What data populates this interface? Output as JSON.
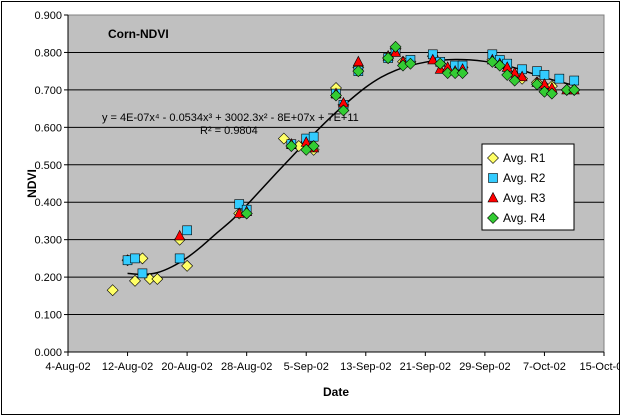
{
  "chart_data": {
    "type": "scatter",
    "title": "Corn-NDVI",
    "xlabel": "Date",
    "ylabel": "NDVI",
    "x_axis": {
      "type": "date",
      "range": [
        "2002-08-04",
        "2002-10-15"
      ]
    },
    "ylim": [
      0,
      0.9
    ],
    "y_ticks": [
      "0.000",
      "0.100",
      "0.200",
      "0.300",
      "0.400",
      "0.500",
      "0.600",
      "0.700",
      "0.800",
      "0.900"
    ],
    "x_ticks": [
      {
        "date": "2002-08-04",
        "label": "4-Aug-02"
      },
      {
        "date": "2002-08-12",
        "label": "12-Aug-02"
      },
      {
        "date": "2002-08-20",
        "label": "20-Aug-02"
      },
      {
        "date": "2002-08-28",
        "label": "28-Aug-02"
      },
      {
        "date": "2002-09-05",
        "label": "5-Sep-02"
      },
      {
        "date": "2002-09-13",
        "label": "13-Sep-02"
      },
      {
        "date": "2002-09-21",
        "label": "21-Sep-02"
      },
      {
        "date": "2002-09-29",
        "label": "29-Sep-02"
      },
      {
        "date": "2002-10-07",
        "label": "7-Oct-02"
      },
      {
        "date": "2002-10-15",
        "label": "15-Oct-02"
      }
    ],
    "grid": true,
    "legend_position": "right",
    "plot_background": "#c0c0c0",
    "trendline": {
      "equation": "y = 4E-07x⁴ - 0.0534x³ + 3002.3x² - 8E+07x + 7E+11",
      "r_squared": "R² = 0.9804",
      "color": "#000000",
      "points": [
        {
          "x": "2002-08-12",
          "y": 0.21
        },
        {
          "x": "2002-08-14",
          "y": 0.207
        },
        {
          "x": "2002-08-16",
          "y": 0.212
        },
        {
          "x": "2002-08-18",
          "y": 0.228
        },
        {
          "x": "2002-08-20",
          "y": 0.252
        },
        {
          "x": "2002-08-22",
          "y": 0.283
        },
        {
          "x": "2002-08-24",
          "y": 0.318
        },
        {
          "x": "2002-08-26",
          "y": 0.352
        },
        {
          "x": "2002-08-28",
          "y": 0.392
        },
        {
          "x": "2002-08-30",
          "y": 0.435
        },
        {
          "x": "2002-09-01",
          "y": 0.478
        },
        {
          "x": "2002-09-03",
          "y": 0.52
        },
        {
          "x": "2002-09-05",
          "y": 0.562
        },
        {
          "x": "2002-09-07",
          "y": 0.602
        },
        {
          "x": "2002-09-09",
          "y": 0.64
        },
        {
          "x": "2002-09-11",
          "y": 0.675
        },
        {
          "x": "2002-09-13",
          "y": 0.707
        },
        {
          "x": "2002-09-15",
          "y": 0.733
        },
        {
          "x": "2002-09-17",
          "y": 0.752
        },
        {
          "x": "2002-09-19",
          "y": 0.765
        },
        {
          "x": "2002-09-21",
          "y": 0.774
        },
        {
          "x": "2002-09-23",
          "y": 0.779
        },
        {
          "x": "2002-09-25",
          "y": 0.781
        },
        {
          "x": "2002-09-27",
          "y": 0.78
        },
        {
          "x": "2002-09-29",
          "y": 0.776
        },
        {
          "x": "2002-10-01",
          "y": 0.769
        },
        {
          "x": "2002-10-03",
          "y": 0.759
        },
        {
          "x": "2002-10-05",
          "y": 0.746
        },
        {
          "x": "2002-10-07",
          "y": 0.733
        },
        {
          "x": "2002-10-09",
          "y": 0.722
        },
        {
          "x": "2002-10-11",
          "y": 0.712
        }
      ]
    },
    "series": [
      {
        "name": "Avg. R1",
        "marker": "diamond",
        "color": "#ffff66",
        "points": [
          {
            "x": "2002-08-10",
            "y": 0.165
          },
          {
            "x": "2002-08-12",
            "y": 0.245
          },
          {
            "x": "2002-08-13",
            "y": 0.19
          },
          {
            "x": "2002-08-14",
            "y": 0.25
          },
          {
            "x": "2002-08-15",
            "y": 0.195
          },
          {
            "x": "2002-08-16",
            "y": 0.195
          },
          {
            "x": "2002-08-19",
            "y": 0.3
          },
          {
            "x": "2002-08-20",
            "y": 0.23
          },
          {
            "x": "2002-08-27",
            "y": 0.37
          },
          {
            "x": "2002-08-28",
            "y": 0.37
          },
          {
            "x": "2002-09-02",
            "y": 0.57
          },
          {
            "x": "2002-09-04",
            "y": 0.55
          },
          {
            "x": "2002-09-05",
            "y": 0.56
          },
          {
            "x": "2002-09-06",
            "y": 0.54
          },
          {
            "x": "2002-09-09",
            "y": 0.705
          },
          {
            "x": "2002-09-10",
            "y": 0.66
          },
          {
            "x": "2002-09-12",
            "y": 0.76
          },
          {
            "x": "2002-09-16",
            "y": 0.785
          },
          {
            "x": "2002-09-17",
            "y": 0.81
          },
          {
            "x": "2002-09-18",
            "y": 0.775
          },
          {
            "x": "2002-09-19",
            "y": 0.775
          },
          {
            "x": "2002-09-22",
            "y": 0.79
          },
          {
            "x": "2002-09-23",
            "y": 0.77
          },
          {
            "x": "2002-09-25",
            "y": 0.76
          },
          {
            "x": "2002-09-26",
            "y": 0.76
          },
          {
            "x": "2002-09-30",
            "y": 0.78
          },
          {
            "x": "2002-10-01",
            "y": 0.77
          },
          {
            "x": "2002-10-02",
            "y": 0.76
          },
          {
            "x": "2002-10-03",
            "y": 0.74
          },
          {
            "x": "2002-10-04",
            "y": 0.73
          },
          {
            "x": "2002-10-06",
            "y": 0.72
          },
          {
            "x": "2002-10-07",
            "y": 0.71
          },
          {
            "x": "2002-10-08",
            "y": 0.71
          },
          {
            "x": "2002-10-10",
            "y": 0.7
          },
          {
            "x": "2002-10-11",
            "y": 0.7
          }
        ]
      },
      {
        "name": "Avg. R2",
        "marker": "square",
        "color": "#33ccff",
        "points": [
          {
            "x": "2002-08-12",
            "y": 0.245
          },
          {
            "x": "2002-08-13",
            "y": 0.25
          },
          {
            "x": "2002-08-14",
            "y": 0.21
          },
          {
            "x": "2002-08-19",
            "y": 0.25
          },
          {
            "x": "2002-08-20",
            "y": 0.325
          },
          {
            "x": "2002-08-27",
            "y": 0.395
          },
          {
            "x": "2002-08-28",
            "y": 0.38
          },
          {
            "x": "2002-09-03",
            "y": 0.555
          },
          {
            "x": "2002-09-05",
            "y": 0.57
          },
          {
            "x": "2002-09-06",
            "y": 0.575
          },
          {
            "x": "2002-09-09",
            "y": 0.69
          },
          {
            "x": "2002-09-10",
            "y": 0.66
          },
          {
            "x": "2002-09-12",
            "y": 0.75
          },
          {
            "x": "2002-09-16",
            "y": 0.785
          },
          {
            "x": "2002-09-17",
            "y": 0.805
          },
          {
            "x": "2002-09-19",
            "y": 0.78
          },
          {
            "x": "2002-09-22",
            "y": 0.795
          },
          {
            "x": "2002-09-23",
            "y": 0.775
          },
          {
            "x": "2002-09-25",
            "y": 0.765
          },
          {
            "x": "2002-09-26",
            "y": 0.765
          },
          {
            "x": "2002-09-30",
            "y": 0.795
          },
          {
            "x": "2002-10-01",
            "y": 0.78
          },
          {
            "x": "2002-10-02",
            "y": 0.77
          },
          {
            "x": "2002-10-04",
            "y": 0.755
          },
          {
            "x": "2002-10-06",
            "y": 0.75
          },
          {
            "x": "2002-10-07",
            "y": 0.74
          },
          {
            "x": "2002-10-09",
            "y": 0.73
          },
          {
            "x": "2002-10-11",
            "y": 0.725
          }
        ]
      },
      {
        "name": "Avg. R3",
        "marker": "triangle",
        "color": "#ff0000",
        "points": [
          {
            "x": "2002-08-19",
            "y": 0.31
          },
          {
            "x": "2002-08-27",
            "y": 0.37
          },
          {
            "x": "2002-08-28",
            "y": 0.375
          },
          {
            "x": "2002-09-03",
            "y": 0.555
          },
          {
            "x": "2002-09-05",
            "y": 0.56
          },
          {
            "x": "2002-09-06",
            "y": 0.545
          },
          {
            "x": "2002-09-09",
            "y": 0.69
          },
          {
            "x": "2002-09-10",
            "y": 0.665
          },
          {
            "x": "2002-09-12",
            "y": 0.775
          },
          {
            "x": "2002-09-16",
            "y": 0.79
          },
          {
            "x": "2002-09-17",
            "y": 0.8
          },
          {
            "x": "2002-09-18",
            "y": 0.775
          },
          {
            "x": "2002-09-22",
            "y": 0.78
          },
          {
            "x": "2002-09-23",
            "y": 0.755
          },
          {
            "x": "2002-09-24",
            "y": 0.76
          },
          {
            "x": "2002-09-25",
            "y": 0.75
          },
          {
            "x": "2002-09-26",
            "y": 0.755
          },
          {
            "x": "2002-09-30",
            "y": 0.78
          },
          {
            "x": "2002-10-01",
            "y": 0.77
          },
          {
            "x": "2002-10-02",
            "y": 0.76
          },
          {
            "x": "2002-10-03",
            "y": 0.745
          },
          {
            "x": "2002-10-04",
            "y": 0.735
          },
          {
            "x": "2002-10-06",
            "y": 0.72
          },
          {
            "x": "2002-10-07",
            "y": 0.715
          },
          {
            "x": "2002-10-08",
            "y": 0.705
          },
          {
            "x": "2002-10-10",
            "y": 0.7
          },
          {
            "x": "2002-10-11",
            "y": 0.7
          }
        ]
      },
      {
        "name": "Avg. R4",
        "marker": "diamond",
        "color": "#33cc33",
        "points": [
          {
            "x": "2002-08-28",
            "y": 0.37
          },
          {
            "x": "2002-09-03",
            "y": 0.55
          },
          {
            "x": "2002-09-05",
            "y": 0.54
          },
          {
            "x": "2002-09-06",
            "y": 0.55
          },
          {
            "x": "2002-09-09",
            "y": 0.685
          },
          {
            "x": "2002-09-10",
            "y": 0.645
          },
          {
            "x": "2002-09-12",
            "y": 0.75
          },
          {
            "x": "2002-09-16",
            "y": 0.785
          },
          {
            "x": "2002-09-17",
            "y": 0.815
          },
          {
            "x": "2002-09-18",
            "y": 0.765
          },
          {
            "x": "2002-09-19",
            "y": 0.77
          },
          {
            "x": "2002-09-23",
            "y": 0.77
          },
          {
            "x": "2002-09-24",
            "y": 0.745
          },
          {
            "x": "2002-09-25",
            "y": 0.745
          },
          {
            "x": "2002-09-26",
            "y": 0.745
          },
          {
            "x": "2002-09-30",
            "y": 0.775
          },
          {
            "x": "2002-10-01",
            "y": 0.765
          },
          {
            "x": "2002-10-02",
            "y": 0.74
          },
          {
            "x": "2002-10-03",
            "y": 0.725
          },
          {
            "x": "2002-10-06",
            "y": 0.715
          },
          {
            "x": "2002-10-07",
            "y": 0.695
          },
          {
            "x": "2002-10-08",
            "y": 0.69
          },
          {
            "x": "2002-10-10",
            "y": 0.7
          },
          {
            "x": "2002-10-11",
            "y": 0.7
          }
        ]
      }
    ]
  }
}
